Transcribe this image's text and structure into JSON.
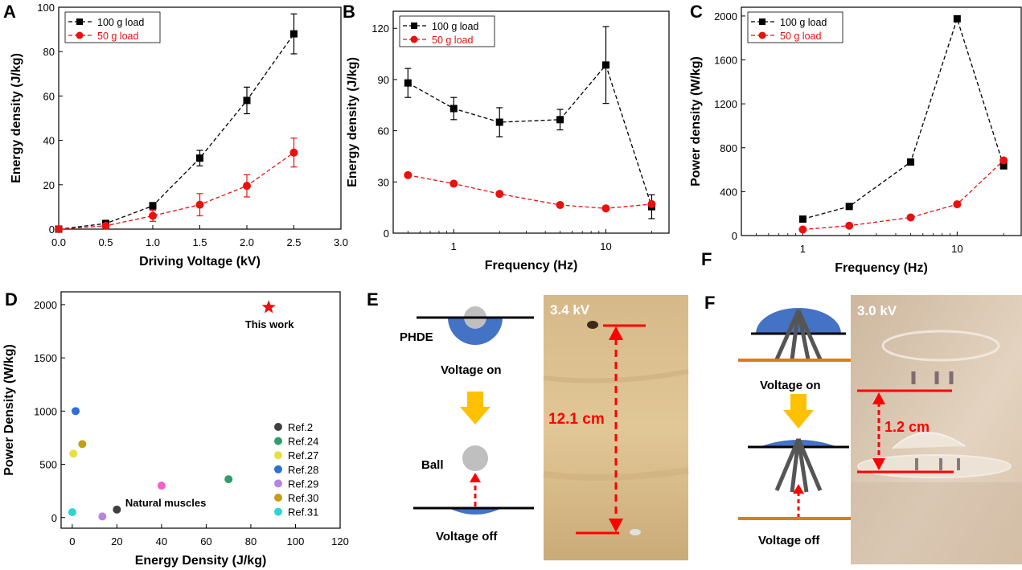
{
  "panel_labels": {
    "A": "A",
    "B": "B",
    "C": "C",
    "D": "D",
    "E": "E",
    "F": "F",
    "F_stray": "F"
  },
  "colors": {
    "black": "#000000",
    "red": "#e8110e",
    "blue_disk": "#4472c4",
    "ball": "#bfbfbf",
    "orange": "#e07b12",
    "arrow_yellow": "#ffc000",
    "marker_red": "#ff0000"
  },
  "chart_data": [
    {
      "panel": "A",
      "type": "line",
      "xlabel": "Driving Voltage (kV)",
      "ylabel": "Energy density (J/kg)",
      "xlim": [
        0,
        3.0
      ],
      "ylim": [
        0,
        100
      ],
      "xticks": [
        "0.0",
        "0.5",
        "1.0",
        "1.5",
        "2.0",
        "2.5",
        "3.0"
      ],
      "yticks": [
        "0",
        "20",
        "40",
        "60",
        "80",
        "100"
      ],
      "legend_position": "top-left",
      "series": [
        {
          "name": "100 g load",
          "color": "#000000",
          "marker": "square",
          "x": [
            0,
            0.5,
            1.0,
            1.5,
            2.0,
            2.5
          ],
          "y": [
            0,
            2.5,
            10.5,
            32,
            58,
            88
          ],
          "err": [
            0,
            1.5,
            1.5,
            3.5,
            6,
            9
          ]
        },
        {
          "name": "50 g load",
          "color": "#e8110e",
          "marker": "circle",
          "x": [
            0,
            0.5,
            1.0,
            1.5,
            2.0,
            2.5
          ],
          "y": [
            0,
            1.5,
            6,
            11,
            19.5,
            34.5
          ],
          "err": [
            0,
            1,
            2.5,
            5,
            5,
            6.5
          ]
        }
      ]
    },
    {
      "panel": "B",
      "type": "line",
      "xlabel": "Frequency (Hz)",
      "ylabel": "Energy density (J/kg)",
      "xscale": "log",
      "xlim": [
        0.4,
        26
      ],
      "ylim": [
        0,
        130
      ],
      "xticks": [
        "1",
        "10"
      ],
      "yticks": [
        "0",
        "30",
        "60",
        "90",
        "120"
      ],
      "legend_position": "top-left",
      "series": [
        {
          "name": "100 g load",
          "color": "#000000",
          "marker": "square",
          "x": [
            0.5,
            1,
            2,
            5,
            10,
            20
          ],
          "y": [
            88,
            73,
            65,
            66.5,
            98.5,
            15.5
          ],
          "err": [
            8.5,
            6.5,
            8.5,
            6,
            22.5,
            7
          ]
        },
        {
          "name": "50 g load",
          "color": "#e8110e",
          "marker": "circle",
          "x": [
            0.5,
            1,
            2,
            5,
            10,
            20
          ],
          "y": [
            34,
            29,
            23,
            16.5,
            14.5,
            17
          ],
          "err": [
            0,
            0,
            0,
            0,
            0,
            0
          ]
        }
      ]
    },
    {
      "panel": "C",
      "type": "line",
      "xlabel": "Frequency (Hz)",
      "ylabel": "Power density (W/kg)",
      "xscale": "log",
      "xlim": [
        0.4,
        26
      ],
      "ylim": [
        0,
        2080
      ],
      "xticks": [
        "1",
        "10"
      ],
      "yticks": [
        "0",
        "400",
        "800",
        "1200",
        "1600",
        "2000"
      ],
      "legend_position": "top-left",
      "series": [
        {
          "name": "100 g load",
          "color": "#000000",
          "marker": "square",
          "x": [
            1,
            2,
            5,
            10,
            20
          ],
          "y": [
            150,
            265,
            670,
            1975,
            635
          ]
        },
        {
          "name": "50 g load",
          "color": "#e8110e",
          "marker": "circle",
          "x": [
            1,
            2,
            5,
            10,
            20
          ],
          "y": [
            55,
            90,
            165,
            285,
            685
          ]
        }
      ]
    },
    {
      "panel": "D",
      "type": "scatter",
      "xlabel": "Energy Density (J/kg)",
      "ylabel": "Power Density (W/kg)",
      "xlim": [
        -5,
        120
      ],
      "ylim": [
        -100,
        2120
      ],
      "xticks": [
        "0",
        "20",
        "40",
        "60",
        "80",
        "100",
        "120"
      ],
      "yticks": [
        "0",
        "500",
        "1000",
        "1500",
        "2000"
      ],
      "legend_position": "bottom-right",
      "points": [
        {
          "name": "Ref.2",
          "color": "#404040",
          "x": 20,
          "y": 75
        },
        {
          "name": "Ref.24",
          "color": "#2e9e6b",
          "x": 70,
          "y": 360
        },
        {
          "name": "Ref.27",
          "color": "#e6e040",
          "x": 0.5,
          "y": 600
        },
        {
          "name": "Ref.28",
          "color": "#2f6fd6",
          "x": 1.5,
          "y": 1000
        },
        {
          "name": "Ref.29",
          "color": "#b885e0",
          "x": 13.5,
          "y": 10
        },
        {
          "name": "Ref.30",
          "color": "#c3a012",
          "x": 4.5,
          "y": 690
        },
        {
          "name": "Ref.31",
          "color": "#2fd3d0",
          "x": 0,
          "y": 50
        },
        {
          "name": "Natural muscles",
          "color": "#f060c8",
          "x": 40,
          "y": 300,
          "legend": false
        }
      ],
      "star": {
        "x": 88,
        "y": 1975,
        "color": "#e8110e"
      },
      "annotations": {
        "this_work": "This work",
        "natural_muscles": "Natural muscles"
      }
    }
  ],
  "panel_e": {
    "device_label": "PHDE",
    "voltage_on": "Voltage on",
    "ball_label": "Ball",
    "voltage_off": "Voltage off",
    "voltage_tag": "3.4 kV",
    "height_label": "12.1 cm"
  },
  "panel_f": {
    "voltage_on": "Voltage on",
    "voltage_off": "Voltage off",
    "voltage_tag": "3.0 kV",
    "height_label": "1.2 cm"
  }
}
